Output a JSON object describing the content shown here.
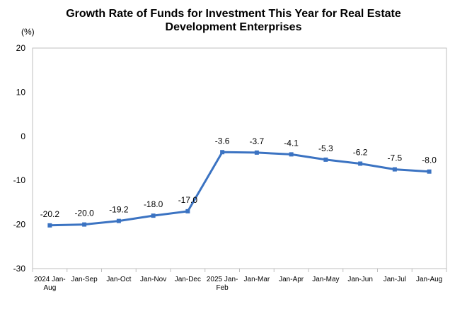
{
  "chart_data": {
    "type": "line",
    "title_line1": "Growth Rate of Funds for Investment This Year for Real Estate",
    "title_line2": "Development Enterprises",
    "unit": "(%)",
    "categories": [
      [
        "2024 Jan-",
        "Aug"
      ],
      [
        "Jan-Sep"
      ],
      [
        "Jan-Oct"
      ],
      [
        "Jan-Nov"
      ],
      [
        "Jan-Dec"
      ],
      [
        "2025 Jan-",
        "Feb"
      ],
      [
        "Jan-Mar"
      ],
      [
        "Jan-Apr"
      ],
      [
        "Jan-May"
      ],
      [
        "Jan-Jun"
      ],
      [
        "Jan-Jul"
      ],
      [
        "Jan-Aug"
      ]
    ],
    "values": [
      -20.2,
      -20.0,
      -19.2,
      -18.0,
      -17.0,
      -3.6,
      -3.7,
      -4.1,
      -5.3,
      -6.2,
      -7.5,
      -8.0
    ],
    "data_labels": [
      "-20.2",
      "-20.0",
      "-19.2",
      "-18.0",
      "-17.0",
      "-3.6",
      "-3.7",
      "-4.1",
      "-5.3",
      "-6.2",
      "-7.5",
      "-8.0"
    ],
    "ylim": [
      -30,
      20
    ],
    "yticks": [
      20,
      10,
      0,
      -10,
      -20,
      -30
    ],
    "line_color": "#3b73c2",
    "grid": false,
    "legend": "none"
  }
}
